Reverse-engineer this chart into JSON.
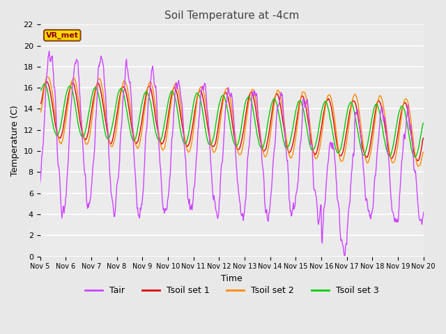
{
  "title": "Soil Temperature at -4cm",
  "xlabel": "Time",
  "ylabel": "Temperature (C)",
  "xlim": [
    0,
    15
  ],
  "ylim": [
    0,
    22
  ],
  "yticks": [
    0,
    2,
    4,
    6,
    8,
    10,
    12,
    14,
    16,
    18,
    20,
    22
  ],
  "xtick_labels": [
    "Nov 5",
    "Nov 6",
    "Nov 7",
    "Nov 8",
    "Nov 9",
    "Nov 10",
    "Nov 11",
    "Nov 12",
    "Nov 13",
    "Nov 14",
    "Nov 15",
    "Nov 16",
    "Nov 17",
    "Nov 18",
    "Nov 19",
    "Nov 20"
  ],
  "legend_labels": [
    "Tair",
    "Tsoil set 1",
    "Tsoil set 2",
    "Tsoil set 3"
  ],
  "colors": {
    "Tair": "#CC44FF",
    "Tsoil1": "#DD0000",
    "Tsoil2": "#FF8800",
    "Tsoil3": "#00CC00"
  },
  "annotation_text": "VR_met",
  "annotation_bg": "#FFD700",
  "annotation_border": "#8B4513",
  "bg_color": "#E8E8E8",
  "plot_bg": "#EBEBEB",
  "linewidth": 1.0,
  "grid_color": "#FFFFFF",
  "title_color": "#444444"
}
